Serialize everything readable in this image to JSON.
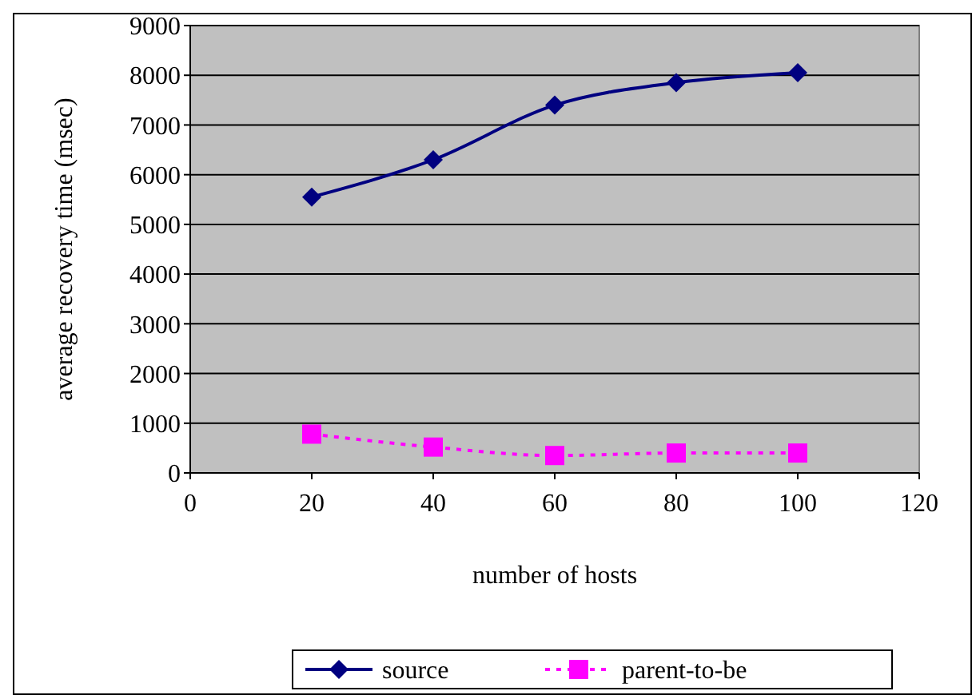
{
  "chart_data": {
    "type": "line",
    "xlabel": "number of hosts",
    "ylabel": "average recovery time (msec)",
    "x": [
      20,
      40,
      60,
      80,
      100
    ],
    "series": [
      {
        "name": "source",
        "color": "#000080",
        "values": [
          5550,
          6300,
          7400,
          7850,
          8050
        ],
        "marker": "diamond",
        "line_style": "solid"
      },
      {
        "name": "parent-to-be",
        "color": "#ff00ff",
        "values": [
          780,
          520,
          350,
          400,
          400
        ],
        "marker": "square",
        "line_style": "dotted"
      }
    ],
    "xlim": [
      0,
      120
    ],
    "xticks": [
      0,
      20,
      40,
      60,
      80,
      100,
      120
    ],
    "ylim": [
      0,
      9000
    ],
    "yticks": [
      0,
      1000,
      2000,
      3000,
      4000,
      5000,
      6000,
      7000,
      8000,
      9000
    ],
    "grid": "y",
    "legend": "bottom"
  }
}
